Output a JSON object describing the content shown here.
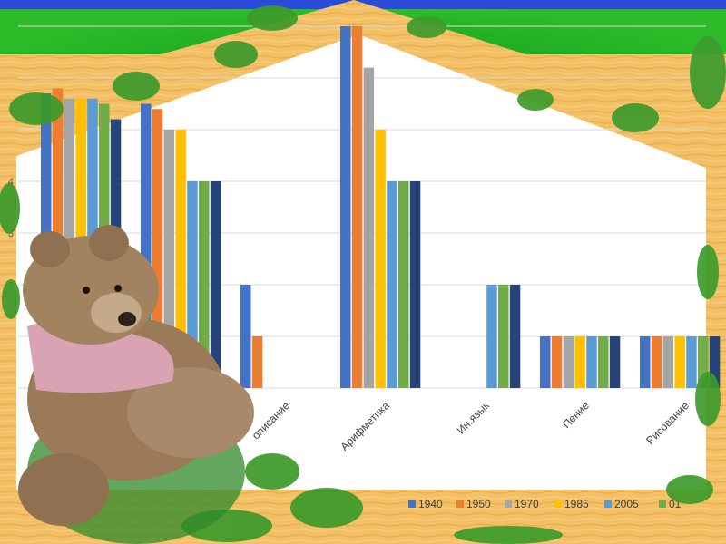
{
  "chart_data": {
    "type": "bar",
    "title": "",
    "xlabel": "",
    "ylabel": "",
    "ylim": [
      0,
      7
    ],
    "yticks": [
      2,
      3,
      4
    ],
    "grid": true,
    "legend_position": "bottom",
    "categories": [
      "Чистописание",
      "Арифметика",
      "Ин.язык",
      "Пение",
      "Рисование"
    ],
    "hidden_categories_before": 2,
    "series": [
      {
        "name": "1940",
        "color": "#4472c4",
        "values": [
          2,
          7,
          null,
          1,
          1
        ]
      },
      {
        "name": "1950",
        "color": "#ed7d31",
        "values": [
          1,
          7,
          null,
          1,
          1
        ]
      },
      {
        "name": "1970",
        "color": "#a5a5a5",
        "values": [
          null,
          6.2,
          null,
          1,
          1
        ]
      },
      {
        "name": "1985",
        "color": "#ffc000",
        "values": [
          null,
          5,
          null,
          1,
          1
        ]
      },
      {
        "name": "2005",
        "color": "#5b9bd5",
        "values": [
          null,
          4,
          2,
          1,
          1
        ]
      },
      {
        "name": "",
        "color": "#70ad47",
        "values": [
          null,
          4,
          2,
          1,
          1
        ]
      },
      {
        "name": "",
        "color": "#264478",
        "values": [
          null,
          4,
          2,
          1,
          1
        ]
      }
    ],
    "legend_labels": [
      "1940",
      "1950",
      "1970",
      "1985",
      "2005",
      "01"
    ]
  },
  "partial_category_labels": [
    "описание"
  ],
  "extra_values": {
    "left_group_1": [
      5.7,
      5.8,
      5.6,
      5.6,
      5.6,
      5.5,
      5.2
    ],
    "left_group_2": [
      5.5,
      5.4,
      5,
      5,
      4,
      4,
      4
    ]
  }
}
